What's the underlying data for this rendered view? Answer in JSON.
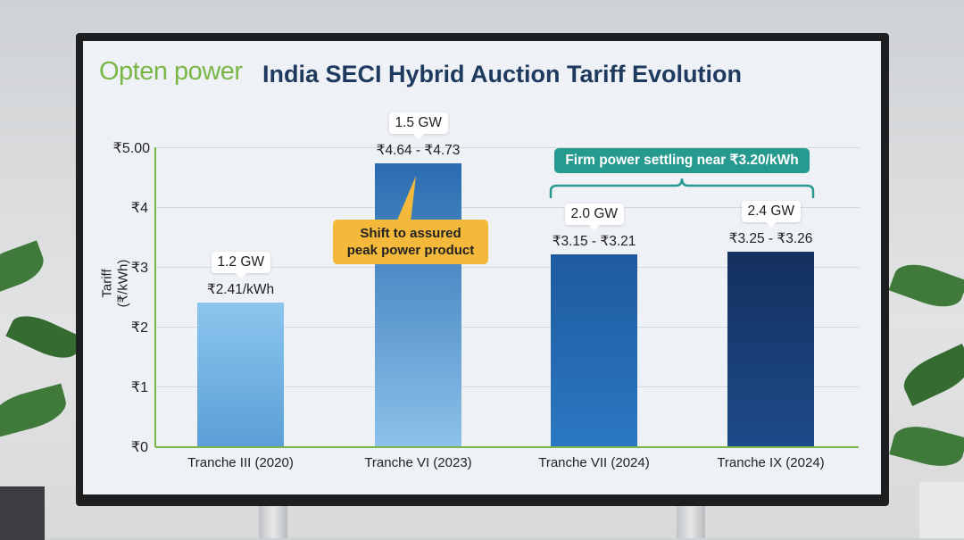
{
  "logo": "Opten power",
  "chart_data": {
    "type": "bar",
    "title": "India SECI Hybrid Auction Tariff Evolution",
    "ylabel": "Tariff (₹/kWh)",
    "xlabel": "",
    "ylim": [
      0,
      5
    ],
    "yticks": [
      "₹0",
      "₹1",
      "₹2",
      "₹3",
      "₹4",
      "₹5.00"
    ],
    "grid": true,
    "categories": [
      "Tranche III (2020)",
      "Tranche VI (2023)",
      "Tranche VII (2024)",
      "Tranche IX (2024)"
    ],
    "values": [
      2.41,
      4.73,
      3.21,
      3.26
    ],
    "ranges": [
      [
        2.41,
        2.41
      ],
      [
        4.64,
        4.73
      ],
      [
        3.15,
        3.21
      ],
      [
        3.25,
        3.26
      ]
    ],
    "value_labels": [
      "₹2.41/kWh",
      "₹4.64 - ₹4.73",
      "₹3.15 - ₹3.21",
      "₹3.25 - ₹3.26"
    ],
    "capacity_labels": [
      "1.2 GW",
      "1.5 GW",
      "2.0 GW",
      "2.4 GW"
    ],
    "colors": [
      [
        "#8cc6ee",
        "#5a9fd6"
      ],
      [
        "#2a6bb0",
        "#8cc2ea"
      ],
      [
        "#1e5a9e",
        "#2b78c2"
      ],
      [
        "#14305e",
        "#1d4a8a"
      ]
    ],
    "annotations": {
      "callout": [
        "Shift to assured",
        "peak power product"
      ],
      "bracket": "Firm power settling near ₹3.20/kWh"
    }
  }
}
